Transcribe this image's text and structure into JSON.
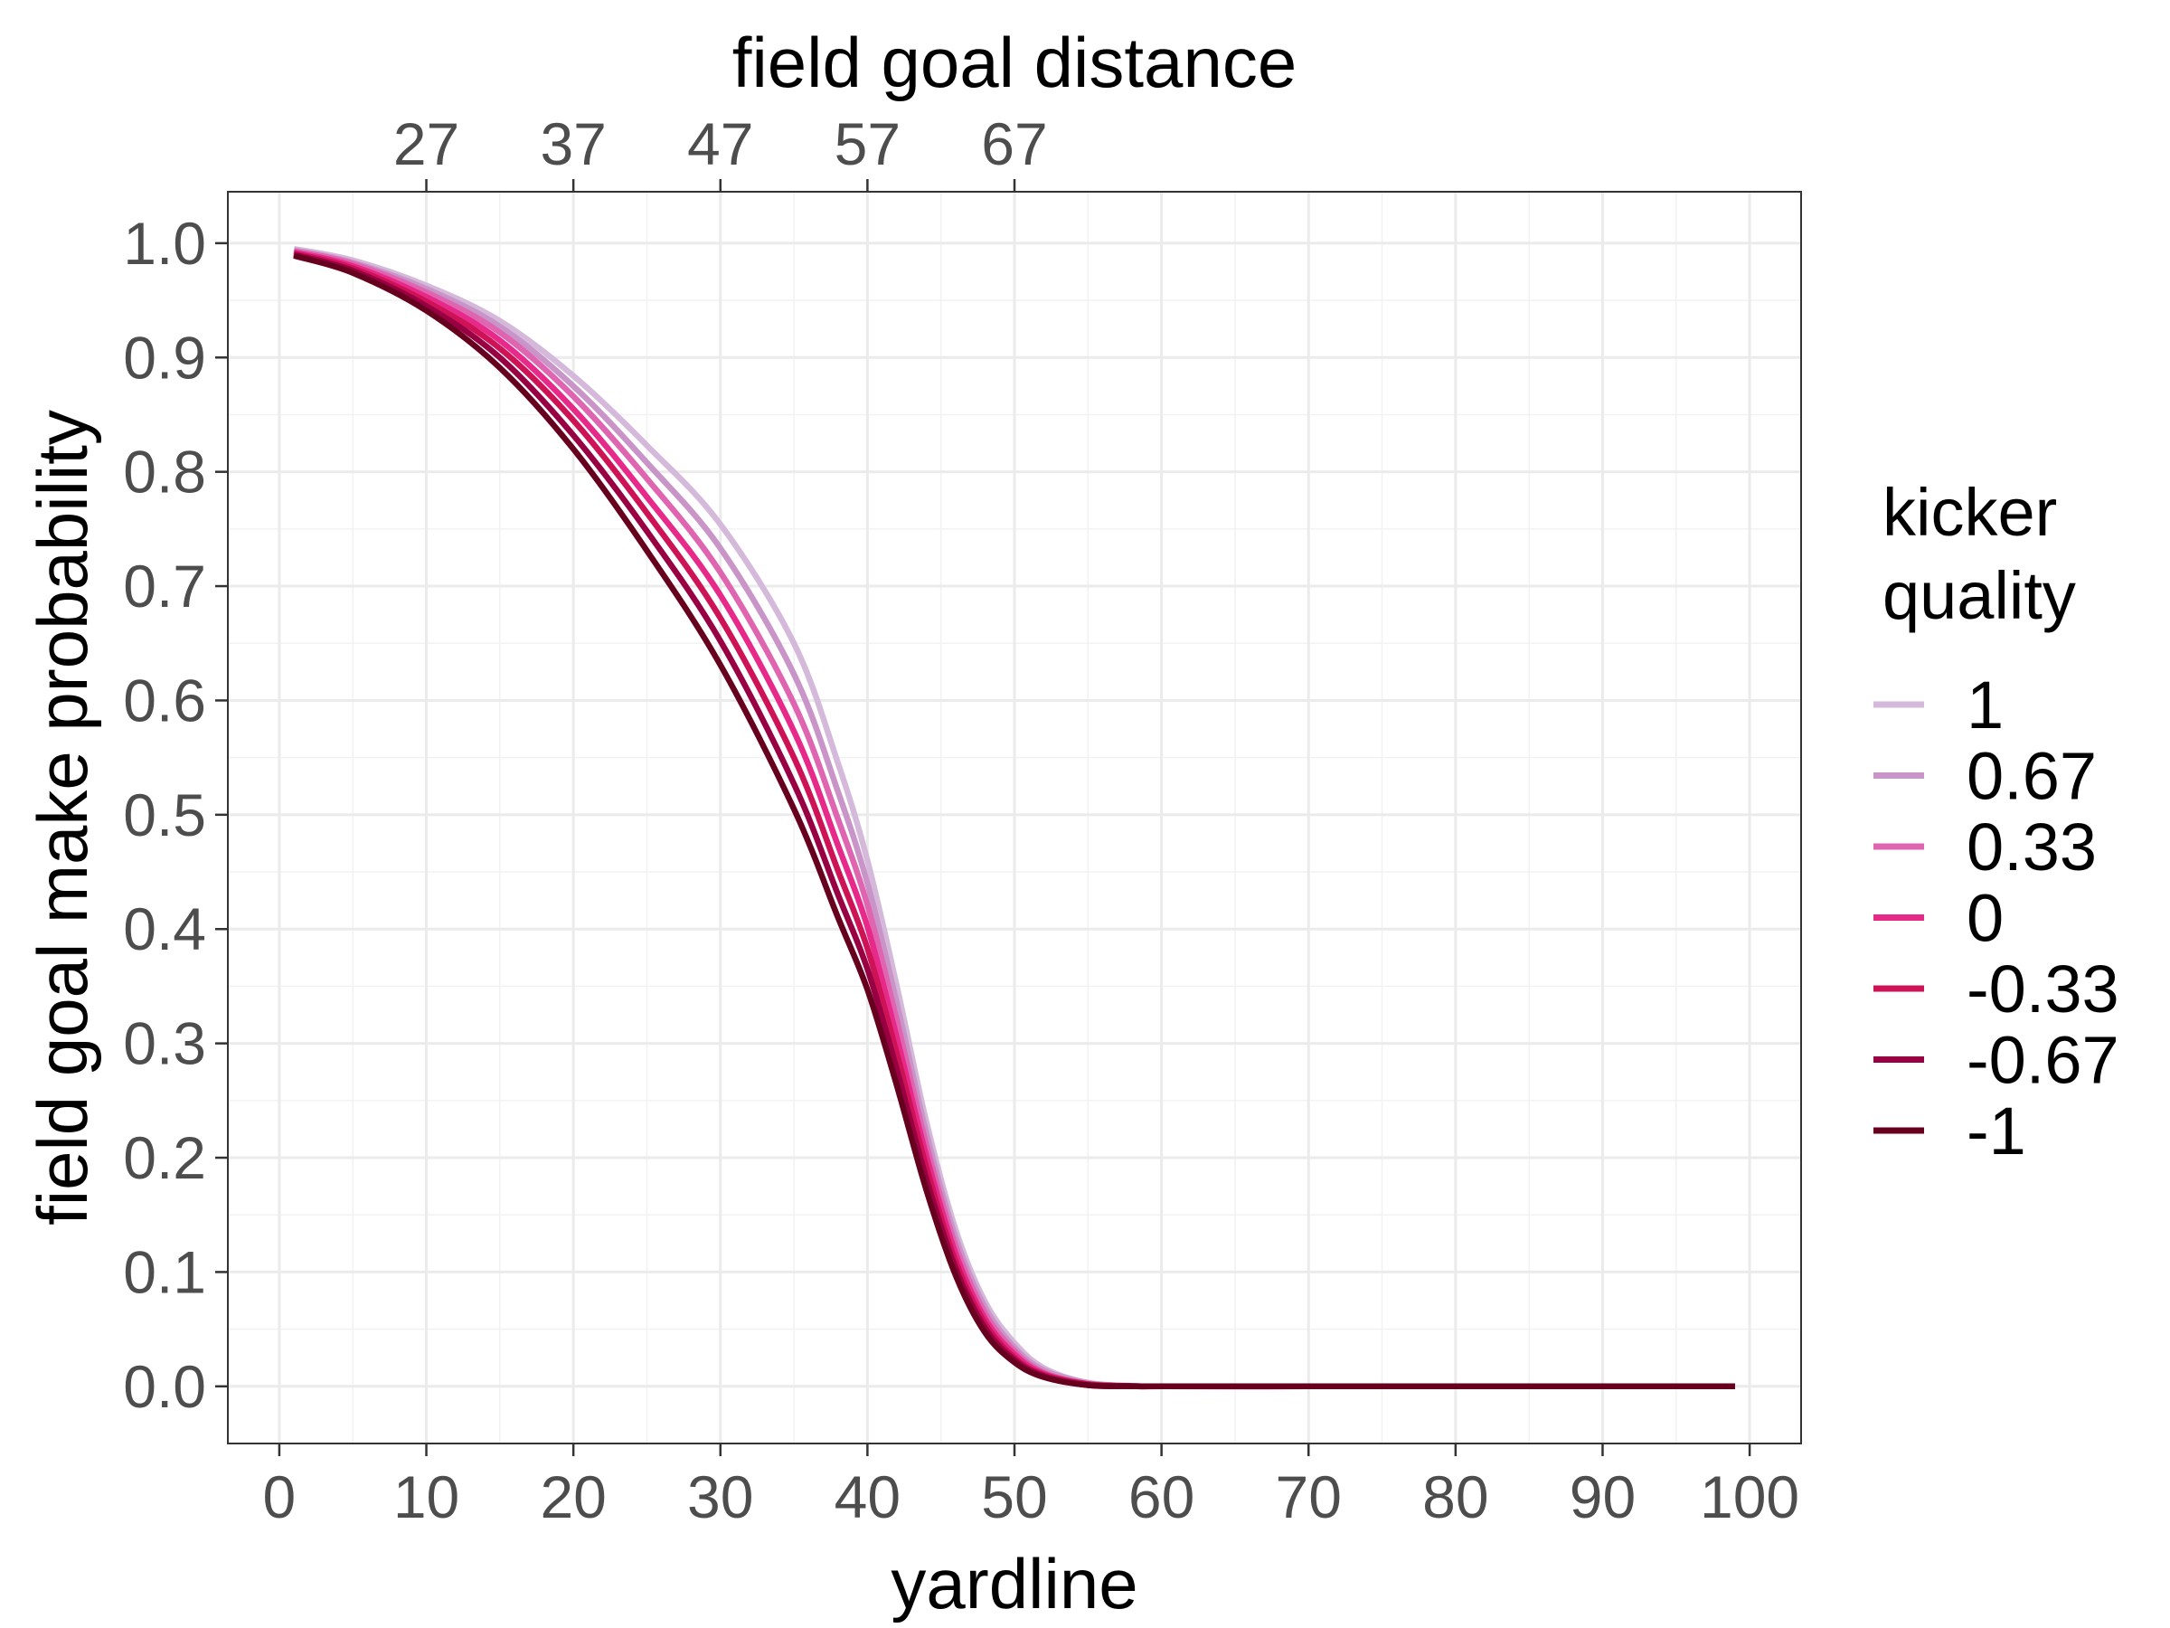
{
  "chart_data": {
    "type": "line",
    "title": "",
    "xlabel": "yardline",
    "ylabel": "field goal make probability",
    "secondary_xlabel": "field goal distance",
    "xlim": [
      -3.5,
      103.5
    ],
    "ylim": [
      -0.05,
      1.045
    ],
    "x_ticks": [
      0,
      10,
      20,
      30,
      40,
      50,
      60,
      70,
      80,
      90,
      100
    ],
    "y_ticks": [
      "0.0",
      "0.1",
      "0.2",
      "0.3",
      "0.4",
      "0.5",
      "0.6",
      "0.7",
      "0.8",
      "0.9",
      "1.0"
    ],
    "secondary_x_ticks": [
      {
        "yardline": 10,
        "label": "27"
      },
      {
        "yardline": 20,
        "label": "37"
      },
      {
        "yardline": 30,
        "label": "47"
      },
      {
        "yardline": 40,
        "label": "57"
      },
      {
        "yardline": 50,
        "label": "67"
      }
    ],
    "grid": true,
    "legend": {
      "title_lines": [
        "kicker",
        "quality"
      ],
      "placement": "right"
    },
    "x": [
      1,
      5,
      10,
      15,
      20,
      25,
      30,
      35,
      38,
      40,
      42,
      44,
      46,
      48,
      50,
      52,
      55,
      58,
      60,
      70,
      80,
      90,
      99
    ],
    "series": [
      {
        "name": "1",
        "color": "#d4b9da",
        "values": [
          0.995,
          0.985,
          0.963,
          0.932,
          0.884,
          0.823,
          0.754,
          0.65,
          0.545,
          0.46,
          0.35,
          0.232,
          0.137,
          0.074,
          0.038,
          0.016,
          0.003,
          0.0005,
          0,
          0,
          0,
          0,
          0
        ]
      },
      {
        "name": "0.67",
        "color": "#c994c7",
        "values": [
          0.994,
          0.983,
          0.96,
          0.927,
          0.875,
          0.808,
          0.733,
          0.623,
          0.52,
          0.44,
          0.335,
          0.222,
          0.13,
          0.069,
          0.034,
          0.014,
          0.003,
          0.0004,
          0,
          0,
          0,
          0,
          0
        ]
      },
      {
        "name": "0.33",
        "color": "#df65b0",
        "values": [
          0.993,
          0.982,
          0.957,
          0.922,
          0.866,
          0.794,
          0.712,
          0.597,
          0.496,
          0.421,
          0.32,
          0.212,
          0.123,
          0.064,
          0.031,
          0.012,
          0.002,
          0.0003,
          0,
          0,
          0,
          0,
          0
        ]
      },
      {
        "name": "0",
        "color": "#e7298a",
        "values": [
          0.992,
          0.98,
          0.953,
          0.915,
          0.855,
          0.778,
          0.692,
          0.573,
          0.473,
          0.402,
          0.305,
          0.202,
          0.116,
          0.059,
          0.028,
          0.011,
          0.002,
          0.0003,
          0,
          0,
          0,
          0,
          0
        ]
      },
      {
        "name": "-0.33",
        "color": "#ce1256",
        "values": [
          0.991,
          0.978,
          0.949,
          0.908,
          0.845,
          0.764,
          0.672,
          0.55,
          0.451,
          0.383,
          0.291,
          0.192,
          0.109,
          0.055,
          0.025,
          0.01,
          0.002,
          0.0002,
          0,
          0,
          0,
          0,
          0
        ]
      },
      {
        "name": "-0.67",
        "color": "#980043",
        "values": [
          0.99,
          0.976,
          0.945,
          0.9,
          0.832,
          0.748,
          0.652,
          0.527,
          0.43,
          0.365,
          0.277,
          0.182,
          0.103,
          0.051,
          0.023,
          0.009,
          0.001,
          0.0002,
          0,
          0,
          0,
          0,
          0
        ]
      },
      {
        "name": "-1",
        "color": "#67001f",
        "values": [
          0.989,
          0.974,
          0.941,
          0.891,
          0.82,
          0.731,
          0.631,
          0.505,
          0.41,
          0.347,
          0.263,
          0.172,
          0.097,
          0.047,
          0.021,
          0.008,
          0.001,
          0.0001,
          0,
          0,
          0,
          0,
          0
        ]
      }
    ]
  }
}
